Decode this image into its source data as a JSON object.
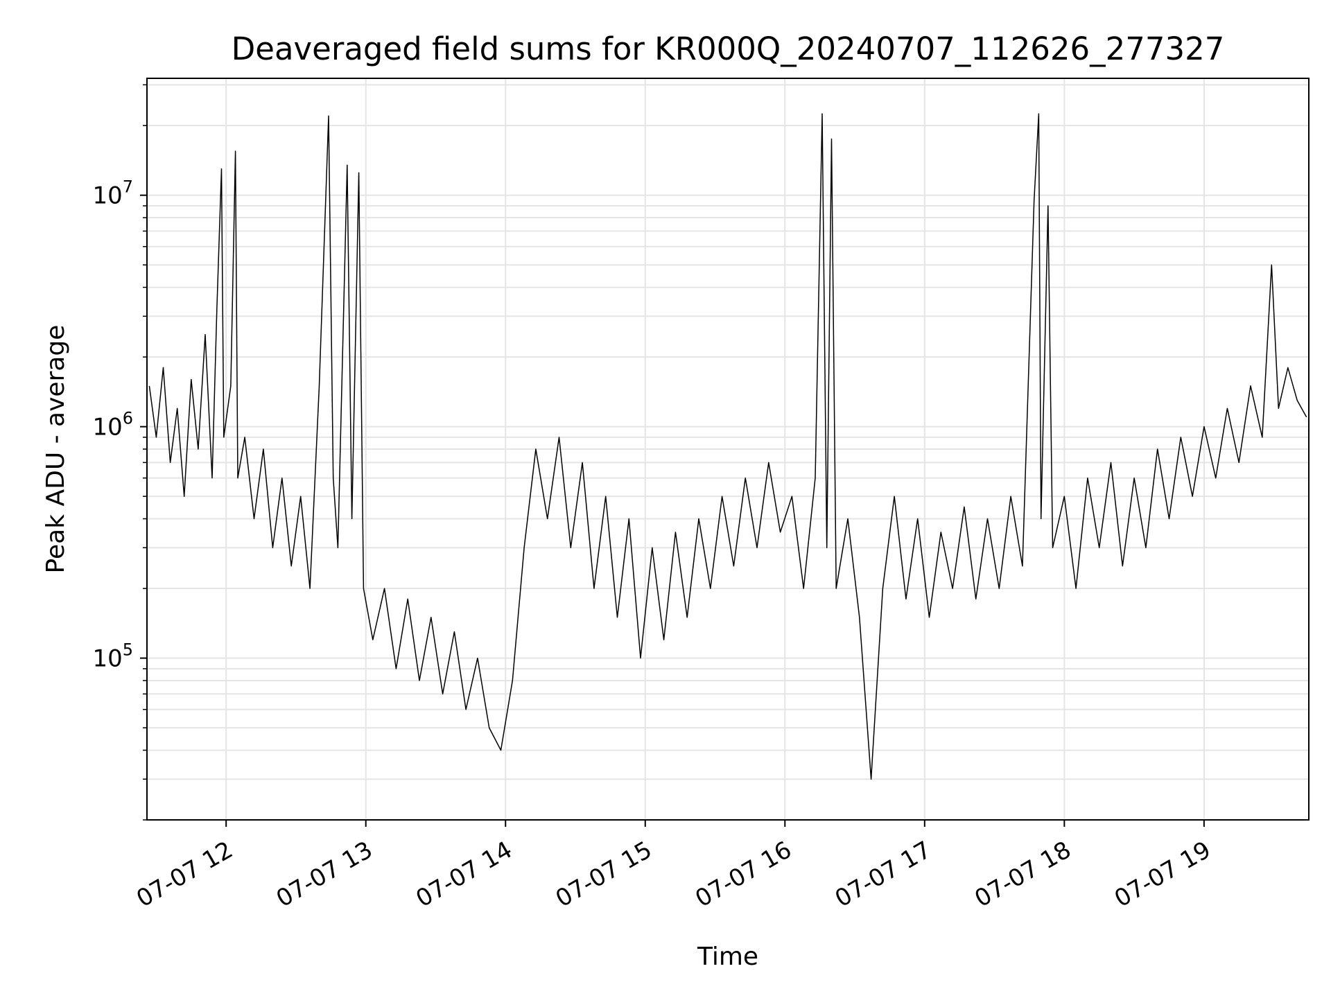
{
  "chart_data": {
    "type": "line",
    "title": "Deaveraged field sums for KR000Q_20240707_112626_277327",
    "xlabel": "Time",
    "ylabel": "Peak ADU - average",
    "yscale": "log",
    "ylim": [
      20000,
      32000000
    ],
    "xlim": [
      "2024-07-07 11:26",
      "2024-07-07 19:45"
    ],
    "grid": true,
    "line_color": "#000000",
    "grid_color": "#e5e5e5",
    "x_ticks": [
      {
        "value": "2024-07-07 12:00",
        "label": "07-07 12"
      },
      {
        "value": "2024-07-07 13:00",
        "label": "07-07 13"
      },
      {
        "value": "2024-07-07 14:00",
        "label": "07-07 14"
      },
      {
        "value": "2024-07-07 15:00",
        "label": "07-07 15"
      },
      {
        "value": "2024-07-07 16:00",
        "label": "07-07 16"
      },
      {
        "value": "2024-07-07 17:00",
        "label": "07-07 17"
      },
      {
        "value": "2024-07-07 18:00",
        "label": "07-07 18"
      },
      {
        "value": "2024-07-07 19:00",
        "label": "07-07 19"
      }
    ],
    "y_ticks": [
      {
        "value": 100000,
        "base": "10",
        "exp": "5"
      },
      {
        "value": 1000000,
        "base": "10",
        "exp": "6"
      },
      {
        "value": 10000000,
        "base": "10",
        "exp": "7"
      }
    ],
    "series": [
      {
        "points": [
          [
            "2024-07-07 11:27",
            1500000
          ],
          [
            "2024-07-07 11:30",
            900000
          ],
          [
            "2024-07-07 11:33",
            1800000
          ],
          [
            "2024-07-07 11:36",
            700000
          ],
          [
            "2024-07-07 11:39",
            1200000
          ],
          [
            "2024-07-07 11:42",
            500000
          ],
          [
            "2024-07-07 11:45",
            1600000
          ],
          [
            "2024-07-07 11:48",
            800000
          ],
          [
            "2024-07-07 11:51",
            2500000
          ],
          [
            "2024-07-07 11:54",
            600000
          ],
          [
            "2024-07-07 11:56",
            3200000
          ],
          [
            "2024-07-07 11:58",
            13000000
          ],
          [
            "2024-07-07 11:59",
            900000
          ],
          [
            "2024-07-07 12:02",
            1500000
          ],
          [
            "2024-07-07 12:04",
            15500000
          ],
          [
            "2024-07-07 12:05",
            600000
          ],
          [
            "2024-07-07 12:08",
            900000
          ],
          [
            "2024-07-07 12:12",
            400000
          ],
          [
            "2024-07-07 12:16",
            800000
          ],
          [
            "2024-07-07 12:20",
            300000
          ],
          [
            "2024-07-07 12:24",
            600000
          ],
          [
            "2024-07-07 12:28",
            250000
          ],
          [
            "2024-07-07 12:32",
            500000
          ],
          [
            "2024-07-07 12:36",
            200000
          ],
          [
            "2024-07-07 12:40",
            1500000
          ],
          [
            "2024-07-07 12:44",
            22000000
          ],
          [
            "2024-07-07 12:46",
            600000
          ],
          [
            "2024-07-07 12:48",
            300000
          ],
          [
            "2024-07-07 12:52",
            13500000
          ],
          [
            "2024-07-07 12:54",
            400000
          ],
          [
            "2024-07-07 12:57",
            12500000
          ],
          [
            "2024-07-07 12:59",
            200000
          ],
          [
            "2024-07-07 13:03",
            120000
          ],
          [
            "2024-07-07 13:08",
            200000
          ],
          [
            "2024-07-07 13:13",
            90000
          ],
          [
            "2024-07-07 13:18",
            180000
          ],
          [
            "2024-07-07 13:23",
            80000
          ],
          [
            "2024-07-07 13:28",
            150000
          ],
          [
            "2024-07-07 13:33",
            70000
          ],
          [
            "2024-07-07 13:38",
            130000
          ],
          [
            "2024-07-07 13:43",
            60000
          ],
          [
            "2024-07-07 13:48",
            100000
          ],
          [
            "2024-07-07 13:53",
            50000
          ],
          [
            "2024-07-07 13:58",
            40000
          ],
          [
            "2024-07-07 14:03",
            80000
          ],
          [
            "2024-07-07 14:08",
            300000
          ],
          [
            "2024-07-07 14:13",
            800000
          ],
          [
            "2024-07-07 14:18",
            400000
          ],
          [
            "2024-07-07 14:23",
            900000
          ],
          [
            "2024-07-07 14:28",
            300000
          ],
          [
            "2024-07-07 14:33",
            700000
          ],
          [
            "2024-07-07 14:38",
            200000
          ],
          [
            "2024-07-07 14:43",
            500000
          ],
          [
            "2024-07-07 14:48",
            150000
          ],
          [
            "2024-07-07 14:53",
            400000
          ],
          [
            "2024-07-07 14:58",
            100000
          ],
          [
            "2024-07-07 15:03",
            300000
          ],
          [
            "2024-07-07 15:08",
            120000
          ],
          [
            "2024-07-07 15:13",
            350000
          ],
          [
            "2024-07-07 15:18",
            150000
          ],
          [
            "2024-07-07 15:23",
            400000
          ],
          [
            "2024-07-07 15:28",
            200000
          ],
          [
            "2024-07-07 15:33",
            500000
          ],
          [
            "2024-07-07 15:38",
            250000
          ],
          [
            "2024-07-07 15:43",
            600000
          ],
          [
            "2024-07-07 15:48",
            300000
          ],
          [
            "2024-07-07 15:53",
            700000
          ],
          [
            "2024-07-07 15:58",
            350000
          ],
          [
            "2024-07-07 16:03",
            500000
          ],
          [
            "2024-07-07 16:08",
            200000
          ],
          [
            "2024-07-07 16:13",
            600000
          ],
          [
            "2024-07-07 16:16",
            22500000
          ],
          [
            "2024-07-07 16:18",
            300000
          ],
          [
            "2024-07-07 16:20",
            17500000
          ],
          [
            "2024-07-07 16:22",
            200000
          ],
          [
            "2024-07-07 16:27",
            400000
          ],
          [
            "2024-07-07 16:32",
            150000
          ],
          [
            "2024-07-07 16:37",
            30000
          ],
          [
            "2024-07-07 16:42",
            200000
          ],
          [
            "2024-07-07 16:47",
            500000
          ],
          [
            "2024-07-07 16:52",
            180000
          ],
          [
            "2024-07-07 16:57",
            400000
          ],
          [
            "2024-07-07 17:02",
            150000
          ],
          [
            "2024-07-07 17:07",
            350000
          ],
          [
            "2024-07-07 17:12",
            200000
          ],
          [
            "2024-07-07 17:17",
            450000
          ],
          [
            "2024-07-07 17:22",
            180000
          ],
          [
            "2024-07-07 17:27",
            400000
          ],
          [
            "2024-07-07 17:32",
            200000
          ],
          [
            "2024-07-07 17:37",
            500000
          ],
          [
            "2024-07-07 17:42",
            250000
          ],
          [
            "2024-07-07 17:47",
            9500000
          ],
          [
            "2024-07-07 17:49",
            22500000
          ],
          [
            "2024-07-07 17:50",
            400000
          ],
          [
            "2024-07-07 17:53",
            9000000
          ],
          [
            "2024-07-07 17:55",
            300000
          ],
          [
            "2024-07-07 18:00",
            500000
          ],
          [
            "2024-07-07 18:05",
            200000
          ],
          [
            "2024-07-07 18:10",
            600000
          ],
          [
            "2024-07-07 18:15",
            300000
          ],
          [
            "2024-07-07 18:20",
            700000
          ],
          [
            "2024-07-07 18:25",
            250000
          ],
          [
            "2024-07-07 18:30",
            600000
          ],
          [
            "2024-07-07 18:35",
            300000
          ],
          [
            "2024-07-07 18:40",
            800000
          ],
          [
            "2024-07-07 18:45",
            400000
          ],
          [
            "2024-07-07 18:50",
            900000
          ],
          [
            "2024-07-07 18:55",
            500000
          ],
          [
            "2024-07-07 19:00",
            1000000
          ],
          [
            "2024-07-07 19:05",
            600000
          ],
          [
            "2024-07-07 19:10",
            1200000
          ],
          [
            "2024-07-07 19:15",
            700000
          ],
          [
            "2024-07-07 19:20",
            1500000
          ],
          [
            "2024-07-07 19:25",
            900000
          ],
          [
            "2024-07-07 19:29",
            5000000
          ],
          [
            "2024-07-07 19:32",
            1200000
          ],
          [
            "2024-07-07 19:36",
            1800000
          ],
          [
            "2024-07-07 19:40",
            1300000
          ],
          [
            "2024-07-07 19:44",
            1100000
          ]
        ]
      }
    ]
  }
}
